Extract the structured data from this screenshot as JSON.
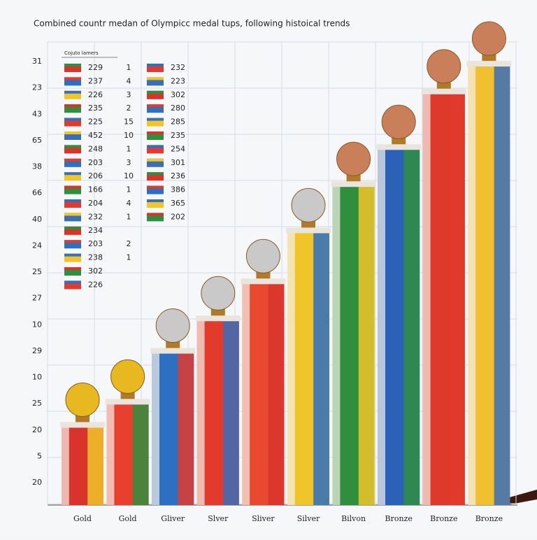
{
  "chart_data": {
    "type": "bar",
    "title": "Combined countr medan of Olympicc medal tups, following histoical trends",
    "categories": [
      "Gold",
      "Gold",
      "Gliver",
      "Slver",
      "Sliver",
      "Silver",
      "Bilvon",
      "Bronze",
      "Bronze",
      "Bronze"
    ],
    "values": [
      17,
      22,
      33,
      40,
      48,
      59,
      69,
      77,
      89,
      95
    ],
    "colors": [
      "#d9342b",
      "#e8402f",
      "#2d6fc0",
      "#e23b2e",
      "#e94a2f",
      "#f0c52a",
      "#2f8f3e",
      "#2b62b8",
      "#dd3a2c",
      "#f0c030"
    ],
    "ylim": [
      0,
      100
    ],
    "y_labels": [
      "31",
      "23",
      "43",
      "65",
      "38",
      "66",
      "40",
      "24",
      "25",
      "27",
      "10",
      "29",
      "10",
      "25",
      "20",
      "5",
      "20"
    ],
    "grid": true,
    "inset": {
      "title": "Cojuto lamers",
      "rows": [
        [
          "229",
          "1",
          "232"
        ],
        [
          "237",
          "4",
          "223"
        ],
        [
          "226",
          "3",
          "302"
        ],
        [
          "235",
          "2",
          "280"
        ],
        [
          "225",
          "15",
          "285"
        ],
        [
          "452",
          "10",
          "235"
        ],
        [
          "248",
          "1",
          "254"
        ],
        [
          "203",
          "3",
          "301"
        ],
        [
          "206",
          "10",
          "236"
        ],
        [
          "166",
          "1",
          "386"
        ],
        [
          "204",
          "4",
          "365"
        ],
        [
          "232",
          "1",
          "202"
        ],
        [
          "234"
        ],
        [
          "203",
          "2"
        ],
        [
          "238",
          "1"
        ],
        [
          "302"
        ],
        [
          "226"
        ]
      ]
    }
  }
}
